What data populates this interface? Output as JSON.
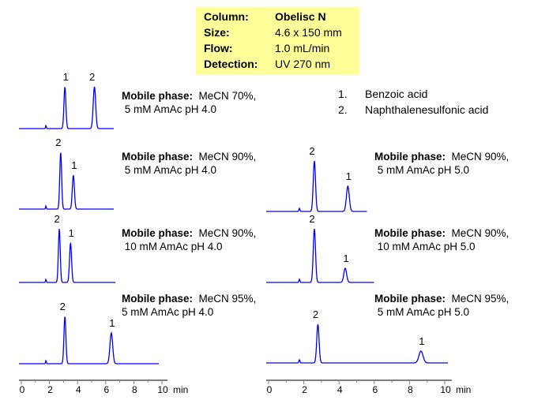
{
  "info": {
    "rows": [
      {
        "label": "Column:",
        "value": "Obelisc N"
      },
      {
        "label": "Size:",
        "value": "4.6 x 150 mm"
      },
      {
        "label": "Flow:",
        "value": "1.0 mL/min"
      },
      {
        "label": "Detection:",
        "value": "UV 270 nm"
      }
    ]
  },
  "legend": [
    {
      "num": "1.",
      "name": "Benzoic acid"
    },
    {
      "num": "2.",
      "name": "Naphthalenesulfonic acid"
    }
  ],
  "colors": {
    "trace": "#0000ff",
    "info_bg": "#ffff99"
  },
  "chart_data": [
    {
      "type": "line",
      "mp_label": "Mobile phase:",
      "mp1": "MeCN 70%,",
      "mp2": "5 mM AmAc pH 4.0",
      "xrange": [
        0,
        6.6
      ],
      "peaks": [
        {
          "label": "1",
          "rt": 3.1,
          "height": 53
        },
        {
          "label": "2",
          "rt": 5.2,
          "height": 53
        }
      ]
    },
    {
      "type": "line",
      "mp_label": "Mobile phase:",
      "mp1": "MeCN 90%,",
      "mp2": "5 mM AmAc pH 4.0",
      "xrange": [
        0,
        6.6
      ],
      "peaks": [
        {
          "label": "2",
          "rt": 2.8,
          "height": 72
        },
        {
          "label": "1",
          "rt": 3.7,
          "height": 43
        }
      ]
    },
    {
      "type": "line",
      "mp_label": "Mobile phase:",
      "mp1": "MeCN 90%,",
      "mp2": "10 mM AmAc pH 4.0",
      "xrange": [
        0,
        6.7
      ],
      "peaks": [
        {
          "label": "2",
          "rt": 2.7,
          "height": 68
        },
        {
          "label": "1",
          "rt": 3.5,
          "height": 50
        }
      ]
    },
    {
      "type": "line",
      "mp_label": "Mobile phase:",
      "mp1": "MeCN 95%,",
      "mp2": "5 mM AmAc pH 4.0",
      "xrange": [
        0,
        9.8
      ],
      "peaks": [
        {
          "label": "2",
          "rt": 3.1,
          "height": 60
        },
        {
          "label": "1",
          "rt": 6.4,
          "height": 39
        }
      ]
    },
    {
      "type": "line",
      "mp_label": "Mobile phase:",
      "mp1": "MeCN 90%,",
      "mp2": "5 mM AmAc pH 5.0",
      "xrange": [
        0,
        5.6
      ],
      "peaks": [
        {
          "label": "2",
          "rt": 2.6,
          "height": 64
        },
        {
          "label": "1",
          "rt": 4.5,
          "height": 32
        }
      ]
    },
    {
      "type": "line",
      "mp_label": "Mobile phase:",
      "mp1": "MeCN 90%,",
      "mp2": "10 mM AmAc pH 5.0",
      "xrange": [
        0,
        6.0
      ],
      "peaks": [
        {
          "label": "2",
          "rt": 2.6,
          "height": 68
        },
        {
          "label": "1",
          "rt": 4.35,
          "height": 18
        }
      ]
    },
    {
      "type": "line",
      "mp_label": "Mobile phase:",
      "mp1": "MeCN 95%,",
      "mp2": "5 mM AmAc pH 5.0",
      "xrange": [
        0,
        10.2
      ],
      "peaks": [
        {
          "label": "2",
          "rt": 2.8,
          "height": 49
        },
        {
          "label": "1",
          "rt": 8.65,
          "height": 15
        }
      ]
    }
  ],
  "axes": {
    "ticks": [
      "0",
      "2",
      "4",
      "6",
      "8",
      "10"
    ],
    "unit": "min",
    "xlim": [
      0,
      10
    ]
  }
}
